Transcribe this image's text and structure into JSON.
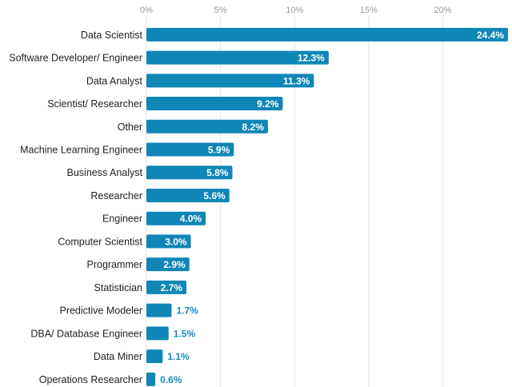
{
  "chart_data": {
    "type": "bar",
    "orientation": "horizontal",
    "categories": [
      "Data Scientist",
      "Software Developer/ Engineer",
      "Data Analyst",
      "Scientist/ Researcher",
      "Other",
      "Machine Learning Engineer",
      "Business Analyst",
      "Researcher",
      "Engineer",
      "Computer Scientist",
      "Programmer",
      "Statistician",
      "Predictive Modeler",
      "DBA/ Database Engineer",
      "Data Miner",
      "Operations Researcher"
    ],
    "values": [
      24.4,
      12.3,
      11.3,
      9.2,
      8.2,
      5.9,
      5.8,
      5.6,
      4.0,
      3.0,
      2.9,
      2.7,
      1.7,
      1.5,
      1.1,
      0.6
    ],
    "value_labels": [
      "24.4%",
      "12.3%",
      "11.3%",
      "9.2%",
      "8.2%",
      "5.9%",
      "5.8%",
      "5.6%",
      "4.0%",
      "3.0%",
      "2.9%",
      "2.7%",
      "1.7%",
      "1.5%",
      "1.1%",
      "0.6%"
    ],
    "x_ticks": [
      0,
      5,
      10,
      15,
      20
    ],
    "x_tick_labels": [
      "0%",
      "5%",
      "10%",
      "15%",
      "20%"
    ],
    "xlim": [
      0,
      24.4
    ],
    "title": "",
    "xlabel": "",
    "ylabel": "",
    "grid": true,
    "legend": "none",
    "bar_color": "#0f86b6",
    "outside_label_color": "#1a8bbf",
    "grid_color": "#e6e6e6"
  }
}
